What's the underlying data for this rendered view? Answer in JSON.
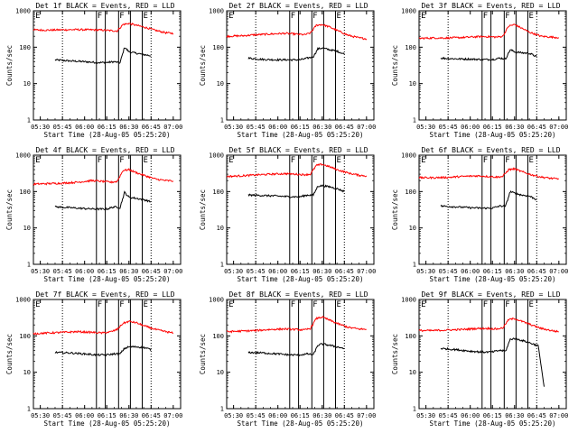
{
  "chart_data": {
    "type": "line",
    "layout": "3x3 grid of small multiples",
    "yscale": "log",
    "ylim": [
      1,
      1000
    ],
    "y_ticks": [
      "1",
      "10",
      "100",
      "1000"
    ],
    "x_ticks": [
      "05:30",
      "05:45",
      "06:00",
      "06:15",
      "06:30",
      "06:45",
      "07:00"
    ],
    "xlim": [
      "05:25:20",
      "07:05"
    ],
    "xlabel": "Start Time (28-Aug-05 05:25:20)",
    "ylabel": "Counts/sec",
    "series_colors": {
      "Events": "#000000",
      "LLD": "#ff0000"
    },
    "grid": false,
    "vertical_lines": {
      "dotted": [
        "05:45",
        "06:45"
      ],
      "solid": [
        "06:08",
        "06:14",
        "06:23",
        "06:31",
        "06:39"
      ]
    },
    "flags": [
      {
        "text": "E",
        "time": "05:26"
      },
      {
        "text": "F",
        "time": "06:08"
      },
      {
        "text": "F",
        "time": "06:23"
      },
      {
        "text": "E",
        "time": "06:39"
      }
    ],
    "panels": [
      {
        "title": "Det 1f BLACK = Events, RED = LLD",
        "series": [
          {
            "name": "Events",
            "x": [
              "05:40",
              "05:50",
              "06:00",
              "06:08",
              "06:15",
              "06:20",
              "06:24",
              "06:27",
              "06:30",
              "06:35",
              "06:40",
              "06:45"
            ],
            "values": [
              45,
              42,
              40,
              38,
              38,
              40,
              37,
              100,
              75,
              68,
              63,
              58
            ]
          },
          {
            "name": "LLD",
            "x": [
              "05:25:20",
              "05:35",
              "05:45",
              "05:55",
              "06:05",
              "06:12",
              "06:18",
              "06:22",
              "06:26",
              "06:30",
              "06:35",
              "06:40",
              "06:48",
              "06:55",
              "07:00"
            ],
            "values": [
              300,
              295,
              300,
              305,
              300,
              295,
              285,
              280,
              420,
              450,
              400,
              360,
              290,
              250,
              240
            ]
          }
        ]
      },
      {
        "title": "Det 2f BLACK = Events, RED = LLD",
        "series": [
          {
            "name": "Events",
            "x": [
              "05:40",
              "05:50",
              "06:00",
              "06:08",
              "06:15",
              "06:20",
              "06:24",
              "06:27",
              "06:30",
              "06:35",
              "06:40",
              "06:45"
            ],
            "values": [
              50,
              46,
              45,
              45,
              45,
              50,
              55,
              90,
              95,
              85,
              78,
              65
            ]
          },
          {
            "name": "LLD",
            "x": [
              "05:25:20",
              "05:35",
              "05:45",
              "05:55",
              "06:05",
              "06:12",
              "06:18",
              "06:22",
              "06:26",
              "06:30",
              "06:35",
              "06:40",
              "06:48",
              "06:55",
              "07:00"
            ],
            "values": [
              200,
              205,
              220,
              230,
              240,
              230,
              220,
              245,
              400,
              420,
              360,
              290,
              210,
              180,
              170
            ]
          }
        ]
      },
      {
        "title": "Det 3f BLACK = Events, RED = LLD",
        "series": [
          {
            "name": "Events",
            "x": [
              "05:40",
              "05:50",
              "06:00",
              "06:08",
              "06:15",
              "06:20",
              "06:24",
              "06:27",
              "06:30",
              "06:35",
              "06:40",
              "06:45"
            ],
            "values": [
              50,
              48,
              47,
              46,
              46,
              50,
              48,
              85,
              75,
              70,
              68,
              55
            ]
          },
          {
            "name": "LLD",
            "x": [
              "05:25:20",
              "05:35",
              "05:45",
              "05:55",
              "06:05",
              "06:12",
              "06:18",
              "06:22",
              "06:26",
              "06:30",
              "06:35",
              "06:40",
              "06:48",
              "06:55",
              "07:00"
            ],
            "values": [
              175,
              180,
              180,
              185,
              195,
              195,
              190,
              200,
              380,
              420,
              330,
              260,
              200,
              190,
              185
            ]
          }
        ]
      },
      {
        "title": "Det 4f BLACK = Events, RED = LLD",
        "series": [
          {
            "name": "Events",
            "x": [
              "05:40",
              "05:50",
              "06:00",
              "06:08",
              "06:15",
              "06:20",
              "06:24",
              "06:27",
              "06:30",
              "06:35",
              "06:40",
              "06:45"
            ],
            "values": [
              38,
              36,
              34,
              33,
              33,
              38,
              36,
              95,
              70,
              65,
              60,
              52
            ]
          },
          {
            "name": "LLD",
            "x": [
              "05:25:20",
              "05:35",
              "05:45",
              "05:55",
              "06:05",
              "06:12",
              "06:18",
              "06:22",
              "06:26",
              "06:30",
              "06:35",
              "06:40",
              "06:48",
              "06:55",
              "07:00"
            ],
            "values": [
              160,
              165,
              170,
              180,
              200,
              190,
              180,
              190,
              380,
              400,
              330,
              280,
              220,
              200,
              195
            ]
          }
        ]
      },
      {
        "title": "Det 5f BLACK = Events, RED = LLD",
        "series": [
          {
            "name": "Events",
            "x": [
              "05:40",
              "05:50",
              "06:00",
              "06:08",
              "06:15",
              "06:20",
              "06:24",
              "06:27",
              "06:30",
              "06:35",
              "06:40",
              "06:45"
            ],
            "values": [
              80,
              78,
              75,
              72,
              72,
              80,
              80,
              140,
              145,
              135,
              120,
              100
            ]
          },
          {
            "name": "LLD",
            "x": [
              "05:25:20",
              "05:35",
              "05:45",
              "05:55",
              "06:05",
              "06:12",
              "06:18",
              "06:22",
              "06:26",
              "06:30",
              "06:35",
              "06:40",
              "06:48",
              "06:55",
              "07:00"
            ],
            "values": [
              260,
              270,
              285,
              300,
              310,
              300,
              290,
              300,
              520,
              560,
              480,
              400,
              320,
              280,
              270
            ]
          }
        ]
      },
      {
        "title": "Det 6f BLACK = Events, RED = LLD",
        "series": [
          {
            "name": "Events",
            "x": [
              "05:40",
              "05:50",
              "06:00",
              "06:08",
              "06:15",
              "06:20",
              "06:24",
              "06:27",
              "06:30",
              "06:35",
              "06:40",
              "06:45"
            ],
            "values": [
              40,
              38,
              36,
              35,
              35,
              40,
              40,
              100,
              90,
              80,
              75,
              60
            ]
          },
          {
            "name": "LLD",
            "x": [
              "05:25:20",
              "05:35",
              "05:45",
              "05:55",
              "06:05",
              "06:12",
              "06:18",
              "06:22",
              "06:26",
              "06:30",
              "06:35",
              "06:40",
              "06:48",
              "06:55",
              "07:00"
            ],
            "values": [
              240,
              240,
              245,
              260,
              270,
              260,
              250,
              260,
              400,
              420,
              350,
              300,
              250,
              230,
              220
            ]
          }
        ]
      },
      {
        "title": "Det 7f BLACK = Events, RED = LLD",
        "series": [
          {
            "name": "Events",
            "x": [
              "05:40",
              "05:50",
              "06:00",
              "06:08",
              "06:15",
              "06:20",
              "06:24",
              "06:27",
              "06:30",
              "06:35",
              "06:40",
              "06:45"
            ],
            "values": [
              35,
              34,
              32,
              30,
              30,
              32,
              32,
              45,
              50,
              50,
              48,
              42
            ]
          },
          {
            "name": "LLD",
            "x": [
              "05:25:20",
              "05:35",
              "05:45",
              "05:55",
              "06:05",
              "06:12",
              "06:18",
              "06:22",
              "06:26",
              "06:30",
              "06:35",
              "06:40",
              "06:48",
              "06:55",
              "07:00"
            ],
            "values": [
              115,
              120,
              125,
              130,
              125,
              120,
              130,
              150,
              220,
              250,
              230,
              190,
              150,
              130,
              120
            ]
          }
        ]
      },
      {
        "title": "Det 8f BLACK = Events, RED = LLD",
        "series": [
          {
            "name": "Events",
            "x": [
              "05:40",
              "05:50",
              "06:00",
              "06:08",
              "06:15",
              "06:20",
              "06:24",
              "06:27",
              "06:30",
              "06:35",
              "06:40",
              "06:45"
            ],
            "values": [
              35,
              34,
              32,
              30,
              30,
              32,
              30,
              55,
              60,
              55,
              50,
              45
            ]
          },
          {
            "name": "LLD",
            "x": [
              "05:25:20",
              "05:35",
              "05:45",
              "05:55",
              "06:05",
              "06:12",
              "06:18",
              "06:22",
              "06:26",
              "06:30",
              "06:35",
              "06:40",
              "06:48",
              "06:55",
              "07:00"
            ],
            "values": [
              130,
              135,
              140,
              150,
              155,
              150,
              145,
              160,
              300,
              330,
              270,
              220,
              170,
              155,
              150
            ]
          }
        ]
      },
      {
        "title": "Det 9f BLACK = Events, RED = LLD",
        "series": [
          {
            "name": "Events",
            "x": [
              "05:40",
              "05:50",
              "06:00",
              "06:08",
              "06:15",
              "06:20",
              "06:24",
              "06:27",
              "06:30",
              "06:35",
              "06:40",
              "06:45",
              "06:46",
              "06:50"
            ],
            "values": [
              45,
              42,
              38,
              36,
              36,
              40,
              38,
              80,
              85,
              75,
              65,
              55,
              55,
              4
            ]
          },
          {
            "name": "LLD",
            "x": [
              "05:25:20",
              "05:35",
              "05:45",
              "05:55",
              "06:05",
              "06:12",
              "06:18",
              "06:22",
              "06:26",
              "06:30",
              "06:35",
              "06:40",
              "06:48",
              "06:55",
              "07:00"
            ],
            "values": [
              140,
              140,
              145,
              150,
              160,
              160,
              155,
              165,
              280,
              300,
              250,
              210,
              160,
              140,
              130
            ]
          }
        ]
      }
    ]
  }
}
